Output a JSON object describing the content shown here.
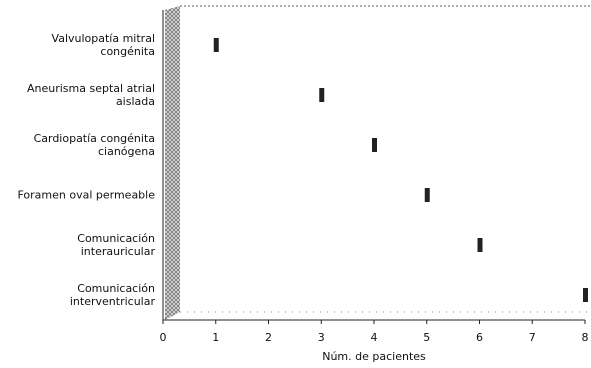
{
  "chart_data": {
    "type": "dot",
    "categories": [
      "Valvulopatía mitral congénita",
      "Aneurisma septal atrial aislada",
      "Cardiopatía congénita cianógena",
      "Foramen oval permeable",
      "Comunicación interauricular",
      "Comunicación interventricular"
    ],
    "values": [
      1,
      3,
      4,
      5,
      6,
      8
    ],
    "color": "#222222",
    "xlabel": "Núm. de pacientes",
    "xlim": [
      0,
      8
    ],
    "xticks": [
      0,
      1,
      2,
      3,
      4,
      5,
      6,
      7,
      8
    ]
  }
}
